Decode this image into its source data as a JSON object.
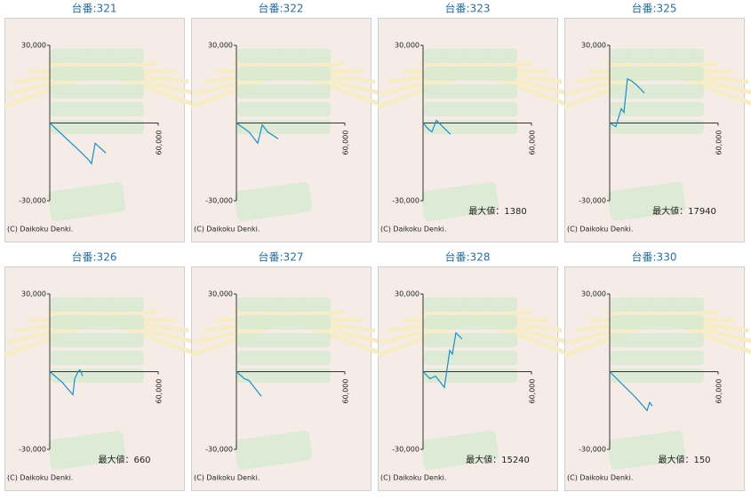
{
  "chart_data": [
    {
      "type": "line",
      "title": "台番:321",
      "color": "#1e8fc6",
      "xlim": [
        0,
        60000
      ],
      "ylim": [
        -30000,
        30000
      ],
      "xticks": [
        {
          "value": 60000,
          "label": "60,000"
        }
      ],
      "yticks": [
        {
          "value": 30000,
          "label": "30,000"
        },
        {
          "value": -30000,
          "label": "-30,000"
        }
      ],
      "x": [
        0,
        16700,
        21600,
        23100,
        25100,
        31000
      ],
      "values": [
        0,
        -10900,
        -14300,
        -15700,
        -7800,
        -11600
      ],
      "copyright": "(C) Daikoku Denki."
    },
    {
      "type": "line",
      "title": "台番:322",
      "color": "#1e8fc6",
      "xlim": [
        0,
        60000
      ],
      "ylim": [
        -30000,
        30000
      ],
      "xticks": [
        {
          "value": 60000,
          "label": "60,000"
        }
      ],
      "yticks": [
        {
          "value": 30000,
          "label": "30,000"
        },
        {
          "value": -30000,
          "label": "-30,000"
        }
      ],
      "x": [
        0,
        6900,
        11800,
        14300,
        17200,
        23100
      ],
      "values": [
        0,
        -3400,
        -7800,
        -700,
        -3400,
        -6100
      ],
      "copyright": "(C) Daikoku Denki."
    },
    {
      "type": "line",
      "title": "台番:323",
      "color": "#1e8fc6",
      "xlim": [
        0,
        60000
      ],
      "ylim": [
        -30000,
        30000
      ],
      "xticks": [
        {
          "value": 60000,
          "label": "60,000"
        }
      ],
      "yticks": [
        {
          "value": 30000,
          "label": "30,000"
        },
        {
          "value": -30000,
          "label": "-30,000"
        }
      ],
      "x": [
        0,
        3000,
        4900,
        7400,
        10300,
        15200
      ],
      "values": [
        0,
        -2400,
        -3400,
        1000,
        -1000,
        -4400
      ],
      "annotation": "最大値：1380",
      "copyright": "(C) Daikoku Denki."
    },
    {
      "type": "line",
      "title": "台番:325",
      "color": "#1e8fc6",
      "xlim": [
        0,
        60000
      ],
      "ylim": [
        -30000,
        30000
      ],
      "xticks": [
        {
          "value": 60000,
          "label": "60,000"
        }
      ],
      "yticks": [
        {
          "value": 30000,
          "label": "30,000"
        },
        {
          "value": -30000,
          "label": "-30,000"
        }
      ],
      "x": [
        0,
        3400,
        6400,
        7900,
        9800,
        11800,
        14800,
        19200
      ],
      "values": [
        0,
        -1400,
        5500,
        4100,
        17000,
        16400,
        14700,
        11600
      ],
      "annotation": "最大値：17940",
      "copyright": "(C) Daikoku Denki."
    },
    {
      "type": "line",
      "title": "台番:326",
      "color": "#1e8fc6",
      "xlim": [
        0,
        60000
      ],
      "ylim": [
        -30000,
        30000
      ],
      "xticks": [
        {
          "value": 60000,
          "label": "60,000"
        }
      ],
      "yticks": [
        {
          "value": 30000,
          "label": "30,000"
        },
        {
          "value": -30000,
          "label": "-30,000"
        }
      ],
      "x": [
        0,
        6900,
        12800,
        13800,
        15700,
        16700,
        18200
      ],
      "values": [
        0,
        -4100,
        -8900,
        -2700,
        0,
        700,
        -1700
      ],
      "annotation": "最大値：660",
      "copyright": "(C) Daikoku Denki."
    },
    {
      "type": "line",
      "title": "台番:327",
      "color": "#1e8fc6",
      "xlim": [
        0,
        60000
      ],
      "ylim": [
        -30000,
        30000
      ],
      "xticks": [
        {
          "value": 60000,
          "label": "60,000"
        }
      ],
      "yticks": [
        {
          "value": 30000,
          "label": "30,000"
        },
        {
          "value": -30000,
          "label": "-30,000"
        }
      ],
      "x": [
        0,
        4400,
        6900,
        13800
      ],
      "values": [
        0,
        -2700,
        -3400,
        -9500
      ],
      "copyright": "(C) Daikoku Denki."
    },
    {
      "type": "line",
      "title": "台番:328",
      "color": "#1e8fc6",
      "xlim": [
        0,
        60000
      ],
      "ylim": [
        -30000,
        30000
      ],
      "xticks": [
        {
          "value": 60000,
          "label": "60,000"
        }
      ],
      "yticks": [
        {
          "value": 30000,
          "label": "30,000"
        },
        {
          "value": -30000,
          "label": "-30,000"
        }
      ],
      "x": [
        0,
        3900,
        6900,
        11800,
        14800,
        16200,
        18200,
        21600
      ],
      "values": [
        0,
        -2700,
        -1700,
        -6100,
        8200,
        6800,
        15000,
        12600
      ],
      "annotation": "最大値：15240",
      "copyright": "(C) Daikoku Denki."
    },
    {
      "type": "line",
      "title": "台番:330",
      "color": "#1e8fc6",
      "xlim": [
        0,
        60000
      ],
      "ylim": [
        -30000,
        30000
      ],
      "xticks": [
        {
          "value": 60000,
          "label": "60,000"
        }
      ],
      "yticks": [
        {
          "value": 30000,
          "label": "30,000"
        },
        {
          "value": -30000,
          "label": "-30,000"
        }
      ],
      "x": [
        0,
        6900,
        14300,
        20700,
        22100,
        23600
      ],
      "values": [
        0,
        -4800,
        -9900,
        -15000,
        -11900,
        -13300
      ],
      "annotation": "最大値：150",
      "copyright": "(C) Daikoku Denki."
    }
  ]
}
